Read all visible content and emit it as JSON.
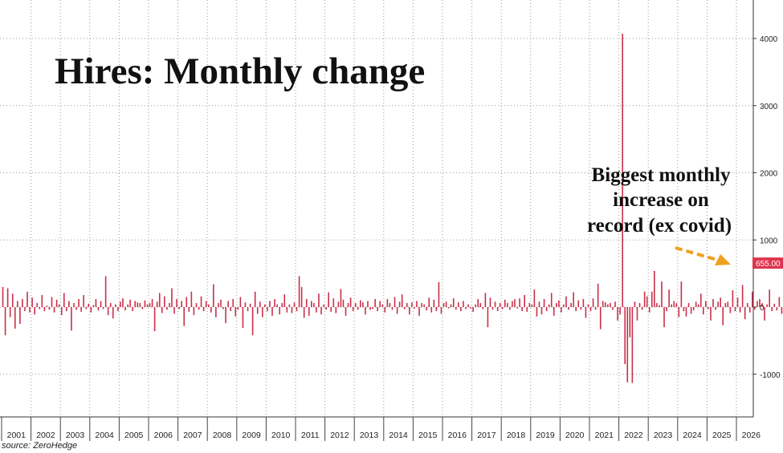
{
  "chart_data": {
    "type": "bar",
    "title": "Hires: Monthly change",
    "annotation": [
      "Biggest monthly",
      "increase on",
      "record (ex covid)"
    ],
    "last_value_label": "655.00",
    "source": "source: ZeroHedge",
    "y_ticks": [
      4000,
      3000,
      2000,
      1000,
      0,
      -1000
    ],
    "ylim": [
      -1500,
      4500
    ],
    "x_tick_labels": [
      "2001",
      "2002",
      "2003",
      "2004",
      "2005",
      "2006",
      "2007",
      "2008",
      "2009",
      "2010",
      "2011",
      "2012",
      "2013",
      "2014",
      "2015",
      "2016",
      "2017",
      "2018",
      "2019",
      "2020",
      "2021",
      "2022",
      "2023",
      "2024",
      "2025",
      "2026"
    ],
    "start": "2001-01",
    "grid": true,
    "legend": "none",
    "colors": {
      "bar": "#c9304a",
      "badge": "#e0344d",
      "arrow": "#f0a020",
      "grid": "#999999"
    },
    "values": [
      300,
      -420,
      280,
      -150,
      200,
      -320,
      90,
      -250,
      120,
      -60,
      230,
      -80,
      140,
      -110,
      60,
      -30,
      180,
      -60,
      20,
      -40,
      150,
      -80,
      110,
      40,
      -120,
      210,
      -60,
      90,
      -350,
      60,
      -40,
      120,
      -70,
      180,
      -30,
      50,
      -80,
      30,
      120,
      -50,
      90,
      -30,
      460,
      -120,
      60,
      -170,
      40,
      -60,
      80,
      130,
      -50,
      40,
      110,
      -60,
      90,
      70,
      60,
      -30,
      100,
      40,
      60,
      120,
      -360,
      80,
      210,
      -90,
      160,
      -40,
      60,
      280,
      -100,
      120,
      -30,
      90,
      -280,
      150,
      -70,
      230,
      -120,
      60,
      -40,
      160,
      -60,
      90,
      40,
      -80,
      340,
      -150,
      60,
      110,
      -30,
      -240,
      90,
      -60,
      120,
      -140,
      -40,
      150,
      -310,
      70,
      -60,
      50,
      -420,
      230,
      -100,
      80,
      -150,
      40,
      -60,
      90,
      -130,
      120,
      40,
      -110,
      60,
      190,
      -80,
      40,
      -90,
      70,
      -60,
      460,
      300,
      -160,
      120,
      -130,
      90,
      60,
      -80,
      200,
      -110,
      40,
      -40,
      220,
      -70,
      130,
      -90,
      80,
      270,
      110,
      -130,
      60,
      140,
      -60,
      60,
      -40,
      100,
      70,
      -110,
      90,
      -40,
      -30,
      120,
      -60,
      90,
      40,
      -80,
      120,
      60,
      -40,
      150,
      -100,
      80,
      190,
      -30,
      60,
      -110,
      70,
      -20,
      90,
      -130,
      60,
      40,
      -50,
      140,
      -80,
      110,
      -60,
      370,
      -100,
      60,
      80,
      -20,
      40,
      130,
      -40,
      70,
      -60,
      90,
      -30,
      40,
      -20,
      -70,
      40,
      120,
      60,
      -30,
      210,
      -300,
      140,
      -40,
      80,
      -60,
      60,
      -30,
      110,
      60,
      -40,
      90,
      120,
      -20,
      130,
      -60,
      180,
      -70,
      60,
      40,
      260,
      -140,
      80,
      -110,
      120,
      -60,
      40,
      210,
      -130,
      60,
      100,
      -80,
      40,
      160,
      -40,
      60,
      220,
      -60,
      100,
      -40,
      120,
      -160,
      40,
      -60,
      130,
      -40,
      350,
      -330,
      90,
      70,
      40,
      60,
      -40,
      80,
      -200,
      -110,
      4070,
      -850,
      -1120,
      -450,
      -1130,
      80,
      -200,
      60,
      -40,
      230,
      160,
      -80,
      230,
      540,
      60,
      30,
      380,
      -300,
      -60,
      260,
      40,
      90,
      60,
      -150,
      380,
      -60,
      -140,
      60,
      -100,
      -50,
      80,
      40,
      200,
      -110,
      90,
      -30,
      -200,
      120,
      -40,
      80,
      140,
      -270,
      60,
      80,
      -90,
      250,
      -60,
      140,
      -80,
      330,
      -180,
      60,
      -80,
      230,
      -40,
      90,
      120,
      60,
      -200,
      40,
      260,
      -60,
      50,
      -50,
      150,
      -100,
      60,
      30,
      -80,
      190,
      -40,
      120,
      -60,
      90,
      -30,
      70,
      -90,
      60,
      -40,
      280,
      -60,
      -470,
      655
    ]
  }
}
